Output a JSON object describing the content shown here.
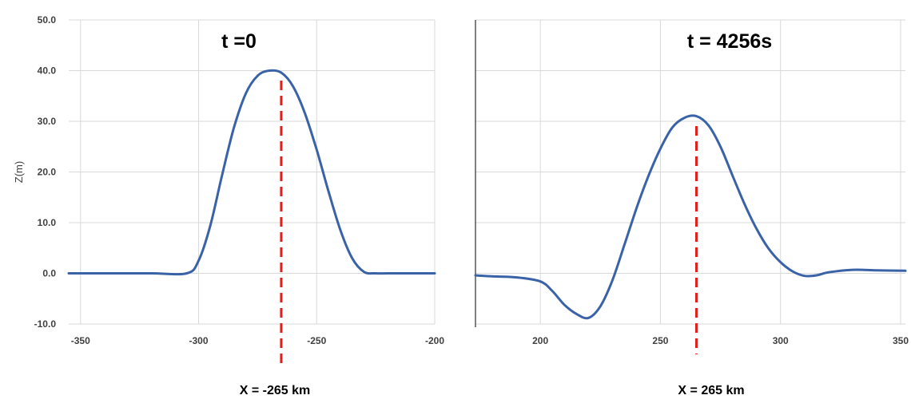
{
  "colors": {
    "series": "#3a62a7",
    "marker": "#e0201b",
    "grid": "#d9d9d9",
    "axis": "#000000"
  },
  "chart_data": [
    {
      "type": "line",
      "title": "t =0",
      "xlabel": "X = -265 km",
      "ylabel": "Z(m)",
      "xlim": [
        -355,
        -200
      ],
      "ylim": [
        -10,
        50
      ],
      "xticks": [
        -350,
        -300,
        -250,
        -200
      ],
      "xtick_labels": [
        "-350",
        "-300",
        "-250",
        "-200"
      ],
      "yticks": [
        -10,
        0,
        10,
        20,
        30,
        40,
        50
      ],
      "ytick_labels": [
        "-10.0",
        "0.0",
        "10.0",
        "20.0",
        "30.0",
        "40.0",
        "50.0"
      ],
      "grid": true,
      "marker_x": -265,
      "series": [
        {
          "x": [
            -355,
            -340,
            -320,
            -305,
            -300,
            -295,
            -290,
            -285,
            -280,
            -275,
            -270,
            -265,
            -260,
            -255,
            -250,
            -245,
            -240,
            -235,
            -230,
            -225,
            -220,
            -210,
            -200
          ],
          "y": [
            0,
            0,
            0,
            0.0,
            2.5,
            9.5,
            19.5,
            28.8,
            35.5,
            39.0,
            40.0,
            39.6,
            36.9,
            31.6,
            24.4,
            16.2,
            8.6,
            3.0,
            0.3,
            0,
            0,
            0,
            0
          ]
        }
      ]
    },
    {
      "type": "line",
      "title": "t = 4256s",
      "xlabel": "X = 265 km",
      "ylabel": "",
      "xlim": [
        173,
        352
      ],
      "ylim": [
        -10,
        50
      ],
      "xticks": [
        200,
        250,
        300,
        350
      ],
      "xtick_labels": [
        "200",
        "250",
        "300",
        "350"
      ],
      "yticks": [
        -10,
        0,
        10,
        20,
        30,
        40,
        50
      ],
      "ytick_labels": [],
      "grid": true,
      "marker_x": 265,
      "series": [
        {
          "x": [
            173,
            180,
            190,
            200,
            205,
            210,
            215,
            220,
            225,
            230,
            235,
            240,
            245,
            250,
            255,
            260,
            265,
            270,
            275,
            280,
            285,
            290,
            295,
            300,
            305,
            310,
            315,
            320,
            330,
            340,
            352
          ],
          "y": [
            -0.4,
            -0.6,
            -0.8,
            -1.6,
            -3.5,
            -6.2,
            -8.0,
            -8.8,
            -6.5,
            -1.4,
            5.6,
            12.8,
            19.2,
            24.6,
            28.8,
            30.7,
            31.0,
            29.2,
            25.0,
            19.3,
            13.7,
            8.8,
            4.9,
            2.2,
            0.4,
            -0.5,
            -0.4,
            0.2,
            0.7,
            0.6,
            0.5
          ]
        }
      ]
    }
  ]
}
